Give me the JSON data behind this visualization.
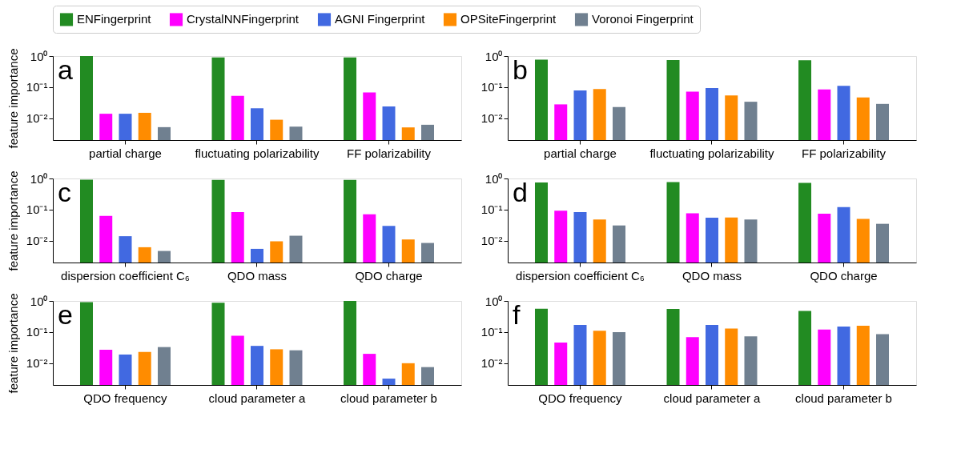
{
  "chart_data": [
    {
      "type": "bar",
      "log": true,
      "grid": false,
      "legend": "top",
      "ylabel": "feature importance",
      "annotations": [
        "a"
      ],
      "categories": [
        "partial charge",
        "fluctuating polarizability",
        "FF polarizability"
      ],
      "ylim": [
        0.002,
        1
      ],
      "yticks": [
        {
          "value": 1,
          "label": "10⁰"
        },
        {
          "value": 0.1,
          "label": "10⁻¹"
        },
        {
          "value": 0.01,
          "label": "10⁻²"
        }
      ],
      "series": [
        {
          "name": "ENFingerprint",
          "color": "#228b22",
          "values": [
            1.0,
            0.9,
            0.9
          ]
        },
        {
          "name": "CrystalNNFingerprint",
          "color": "#ff00ff",
          "values": [
            0.014,
            0.053,
            0.068
          ]
        },
        {
          "name": "AGNI Fingerprint",
          "color": "#4169e1",
          "values": [
            0.014,
            0.021,
            0.024
          ]
        },
        {
          "name": "OPSiteFingerprint",
          "color": "#ff8c00",
          "values": [
            0.015,
            0.009,
            0.0051
          ]
        },
        {
          "name": "Voronoi Fingerprint",
          "color": "#708090",
          "values": [
            0.0052,
            0.0054,
            0.0062
          ]
        }
      ]
    },
    {
      "type": "bar",
      "log": true,
      "grid": false,
      "legend": "top",
      "annotations": [
        "b"
      ],
      "categories": [
        "partial charge",
        "fluctuating polarizability",
        "FF polarizability"
      ],
      "ylim": [
        0.002,
        1
      ],
      "yticks": [
        {
          "value": 1,
          "label": "10⁰"
        },
        {
          "value": 0.1,
          "label": "10⁻¹"
        },
        {
          "value": 0.01,
          "label": "10⁻²"
        }
      ],
      "series": [
        {
          "name": "ENFingerprint",
          "color": "#228b22",
          "values": [
            0.77,
            0.74,
            0.73
          ]
        },
        {
          "name": "CrystalNNFingerprint",
          "color": "#ff00ff",
          "values": [
            0.028,
            0.072,
            0.085
          ]
        },
        {
          "name": "AGNI Fingerprint",
          "color": "#4169e1",
          "values": [
            0.079,
            0.094,
            0.11
          ]
        },
        {
          "name": "OPSiteFingerprint",
          "color": "#ff8c00",
          "values": [
            0.087,
            0.054,
            0.047
          ]
        },
        {
          "name": "Voronoi Fingerprint",
          "color": "#708090",
          "values": [
            0.023,
            0.034,
            0.029
          ]
        }
      ]
    },
    {
      "type": "bar",
      "log": true,
      "grid": false,
      "legend": "top",
      "ylabel": "feature importance",
      "annotations": [
        "c"
      ],
      "categories": [
        "dispersion coefficient C₆",
        "QDO mass",
        "QDO charge"
      ],
      "ylim": [
        0.002,
        1
      ],
      "yticks": [
        {
          "value": 1,
          "label": "10⁰"
        },
        {
          "value": 0.1,
          "label": "10⁻¹"
        },
        {
          "value": 0.01,
          "label": "10⁻²"
        }
      ],
      "series": [
        {
          "name": "ENFingerprint",
          "color": "#228b22",
          "values": [
            0.92,
            0.9,
            0.9
          ]
        },
        {
          "name": "CrystalNNFingerprint",
          "color": "#ff00ff",
          "values": [
            0.063,
            0.083,
            0.071
          ]
        },
        {
          "name": "AGNI Fingerprint",
          "color": "#4169e1",
          "values": [
            0.014,
            0.0055,
            0.03
          ]
        },
        {
          "name": "OPSiteFingerprint",
          "color": "#ff8c00",
          "values": [
            0.0062,
            0.0096,
            0.011
          ]
        },
        {
          "name": "Voronoi Fingerprint",
          "color": "#708090",
          "values": [
            0.0047,
            0.0145,
            0.0085
          ]
        }
      ]
    },
    {
      "type": "bar",
      "log": true,
      "grid": false,
      "legend": "top",
      "annotations": [
        "d"
      ],
      "categories": [
        "dispersion coefficient C₆",
        "QDO mass",
        "QDO charge"
      ],
      "ylim": [
        0.002,
        1
      ],
      "yticks": [
        {
          "value": 1,
          "label": "10⁰"
        },
        {
          "value": 0.1,
          "label": "10⁻¹"
        },
        {
          "value": 0.01,
          "label": "10⁻²"
        }
      ],
      "series": [
        {
          "name": "ENFingerprint",
          "color": "#228b22",
          "values": [
            0.74,
            0.77,
            0.72
          ]
        },
        {
          "name": "CrystalNNFingerprint",
          "color": "#ff00ff",
          "values": [
            0.092,
            0.076,
            0.074
          ]
        },
        {
          "name": "AGNI Fingerprint",
          "color": "#4169e1",
          "values": [
            0.083,
            0.055,
            0.12
          ]
        },
        {
          "name": "OPSiteFingerprint",
          "color": "#ff8c00",
          "values": [
            0.048,
            0.056,
            0.05
          ]
        },
        {
          "name": "Voronoi Fingerprint",
          "color": "#708090",
          "values": [
            0.031,
            0.048,
            0.035
          ]
        }
      ]
    },
    {
      "type": "bar",
      "log": true,
      "grid": false,
      "legend": "top",
      "ylabel": "feature importance",
      "annotations": [
        "e"
      ],
      "categories": [
        "QDO frequency",
        "cloud parameter a",
        "cloud parameter b"
      ],
      "ylim": [
        0.002,
        1
      ],
      "yticks": [
        {
          "value": 1,
          "label": "10⁰"
        },
        {
          "value": 0.1,
          "label": "10⁻¹"
        },
        {
          "value": 0.01,
          "label": "10⁻²"
        }
      ],
      "series": [
        {
          "name": "ENFingerprint",
          "color": "#228b22",
          "values": [
            0.92,
            0.87,
            1.0
          ]
        },
        {
          "name": "CrystalNNFingerprint",
          "color": "#ff00ff",
          "values": [
            0.027,
            0.076,
            0.02
          ]
        },
        {
          "name": "AGNI Fingerprint",
          "color": "#4169e1",
          "values": [
            0.019,
            0.036,
            0.0032
          ]
        },
        {
          "name": "OPSiteFingerprint",
          "color": "#ff8c00",
          "values": [
            0.023,
            0.028,
            0.01
          ]
        },
        {
          "name": "Voronoi Fingerprint",
          "color": "#708090",
          "values": [
            0.033,
            0.026,
            0.0075
          ]
        }
      ]
    },
    {
      "type": "bar",
      "log": true,
      "grid": false,
      "legend": "top",
      "annotations": [
        "f"
      ],
      "categories": [
        "QDO frequency",
        "cloud parameter a",
        "cloud parameter b"
      ],
      "ylim": [
        0.002,
        1
      ],
      "yticks": [
        {
          "value": 1,
          "label": "10⁰"
        },
        {
          "value": 0.1,
          "label": "10⁻¹"
        },
        {
          "value": 0.01,
          "label": "10⁻²"
        }
      ],
      "series": [
        {
          "name": "ENFingerprint",
          "color": "#228b22",
          "values": [
            0.56,
            0.55,
            0.48
          ]
        },
        {
          "name": "CrystalNNFingerprint",
          "color": "#ff00ff",
          "values": [
            0.046,
            0.069,
            0.12
          ]
        },
        {
          "name": "AGNI Fingerprint",
          "color": "#4169e1",
          "values": [
            0.17,
            0.17,
            0.15
          ]
        },
        {
          "name": "OPSiteFingerprint",
          "color": "#ff8c00",
          "values": [
            0.11,
            0.13,
            0.16
          ]
        },
        {
          "name": "Voronoi Fingerprint",
          "color": "#708090",
          "values": [
            0.1,
            0.073,
            0.086
          ]
        }
      ]
    }
  ]
}
